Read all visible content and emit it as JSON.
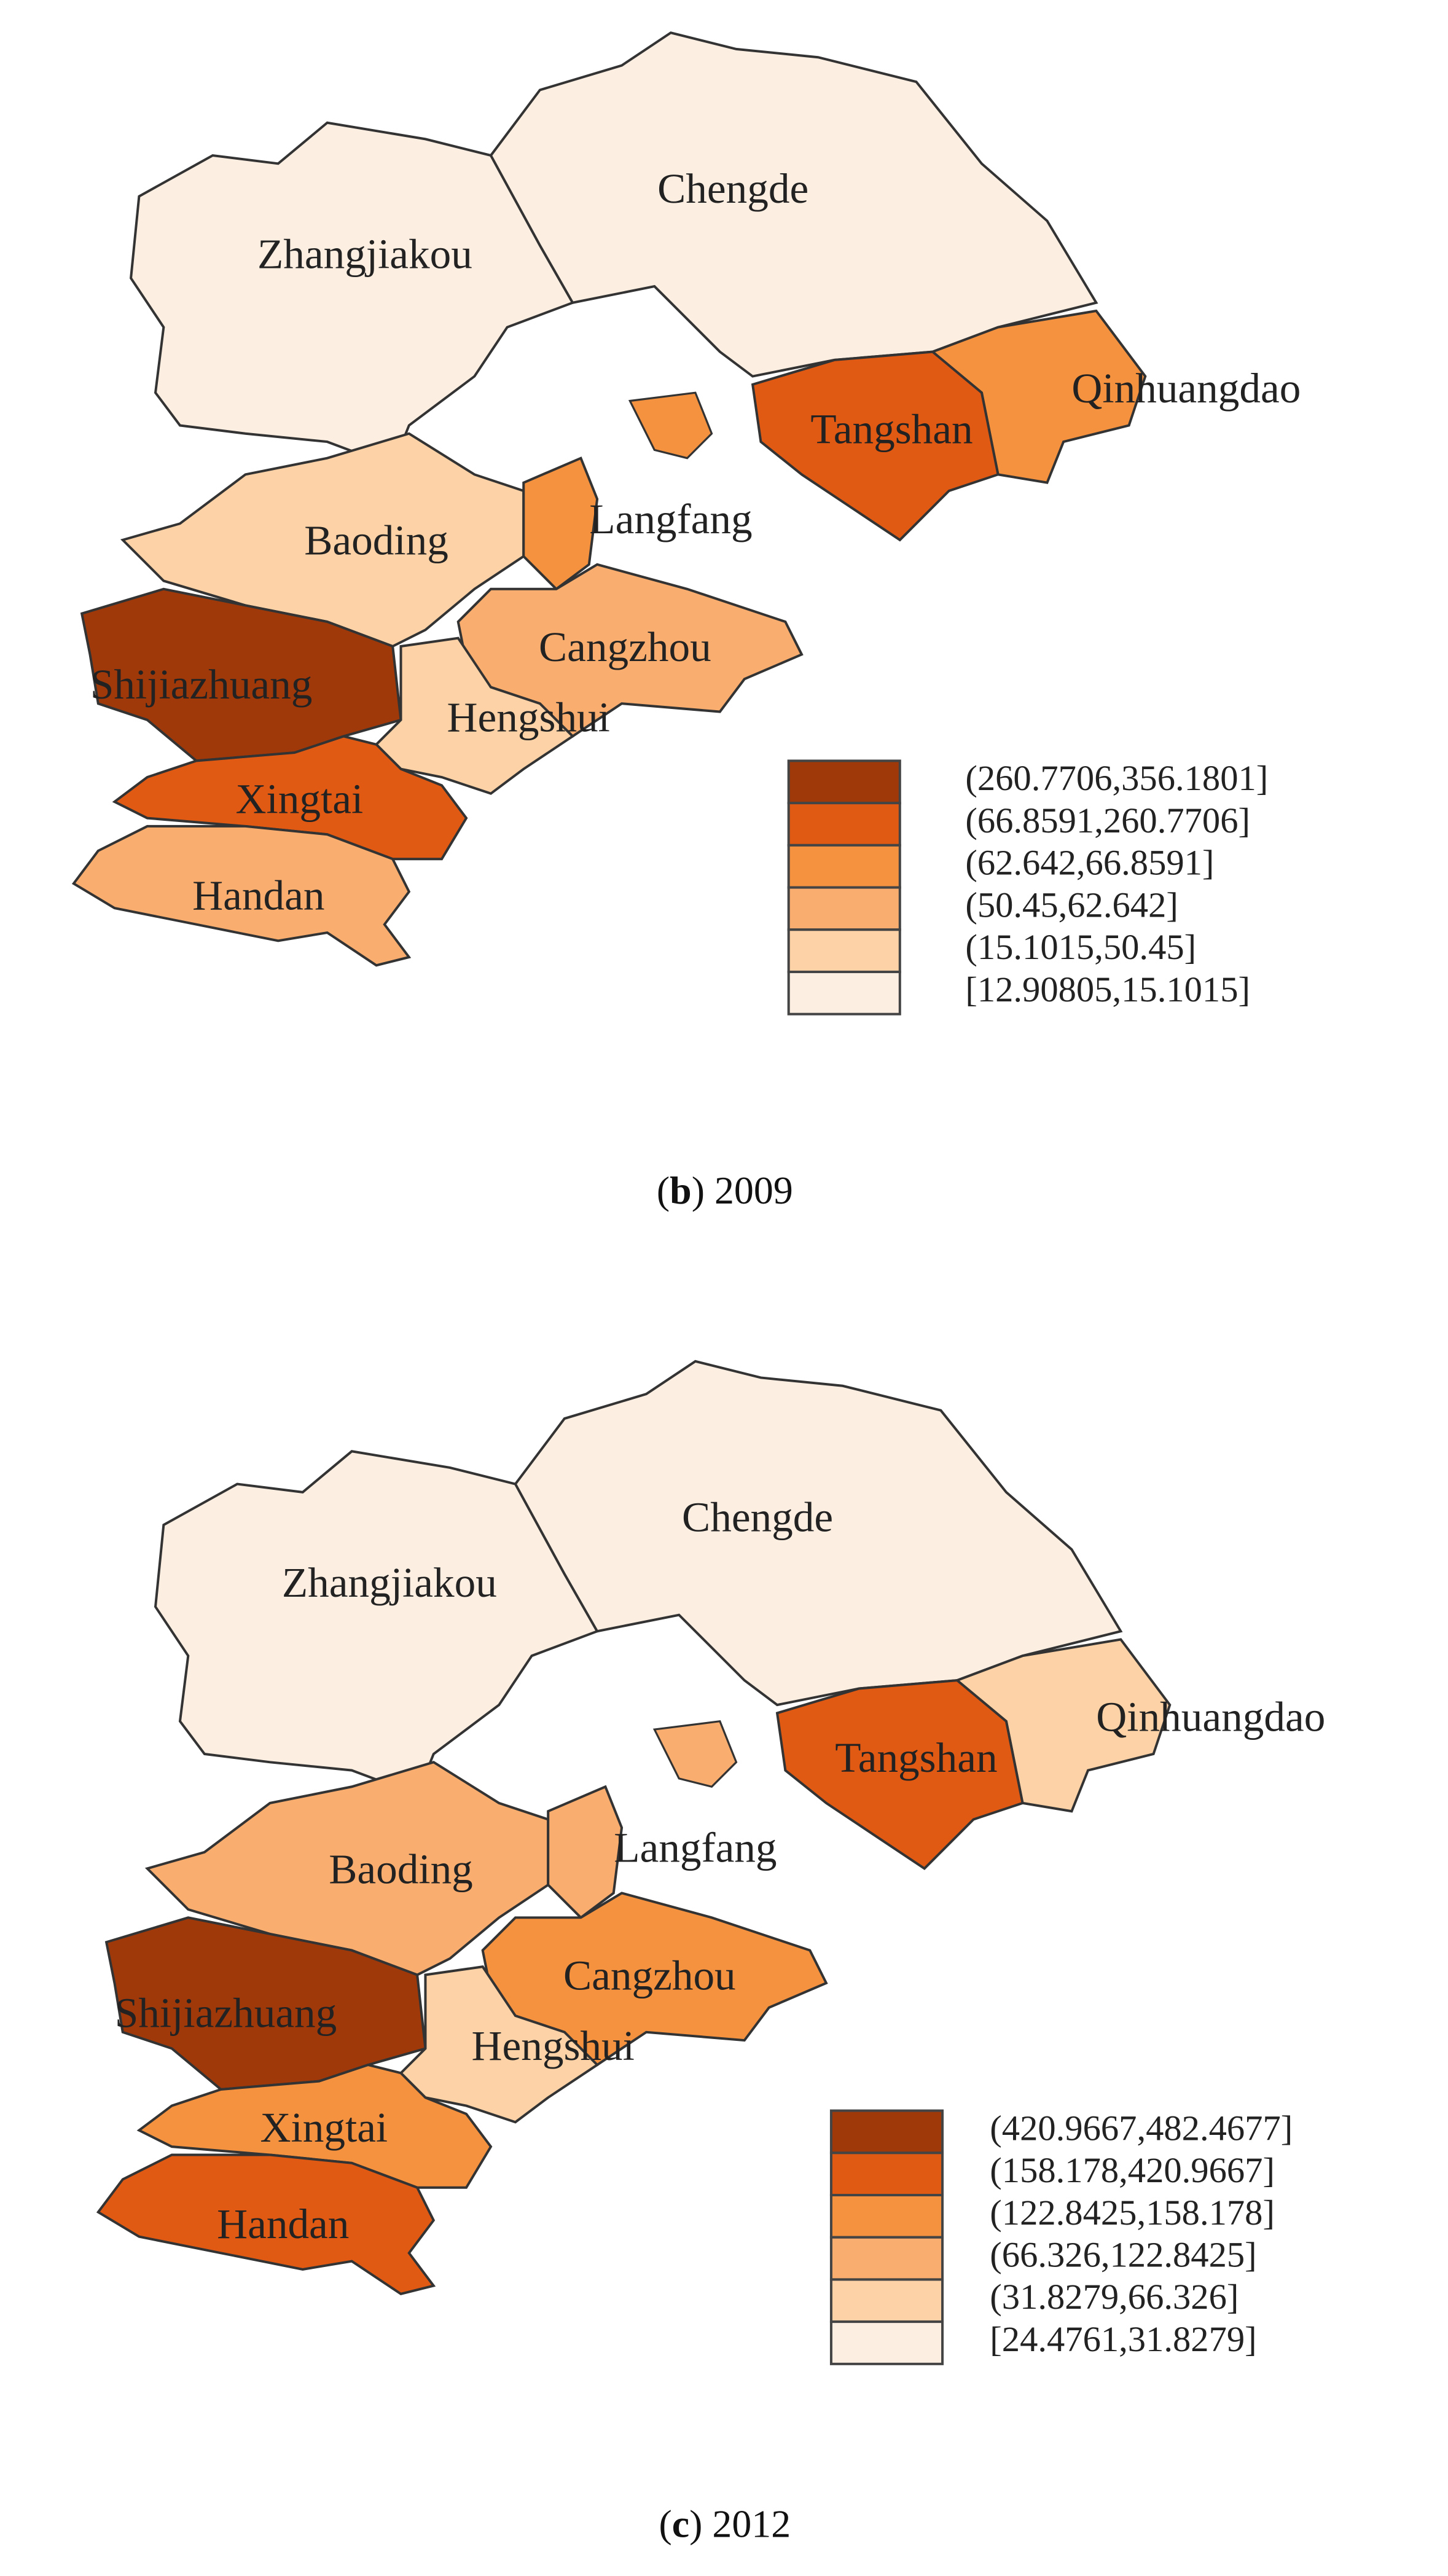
{
  "panels": [
    {
      "caption": [
        "(",
        "b",
        ") 2009"
      ],
      "regions": [
        {
          "name": "Zhangjiakou",
          "color": "#fdeee2"
        },
        {
          "name": "Chengde",
          "color": "#fdeee2"
        },
        {
          "name": "Qinhuangdao",
          "color": "#f5923f"
        },
        {
          "name": "Tangshan",
          "color": "#e05a14"
        },
        {
          "name": "Baoding",
          "color": "#fcd2a6"
        },
        {
          "name": "Langfang",
          "color": "#f5923f"
        },
        {
          "name": "Cangzhou",
          "color": "#f9ad6e"
        },
        {
          "name": "Shijiazhuang",
          "color": "#a0390a"
        },
        {
          "name": "Hengshui",
          "color": "#fcd2a6"
        },
        {
          "name": "Xingtai",
          "color": "#e05a14"
        },
        {
          "name": "Handan",
          "color": "#f9ad6e"
        }
      ],
      "legend": [
        {
          "label": "(260.7706,356.1801]",
          "color": "#a0390a"
        },
        {
          "label": "(66.8591,260.7706]",
          "color": "#e05a14"
        },
        {
          "label": "(62.642,66.8591]",
          "color": "#f5923f"
        },
        {
          "label": "(50.45,62.642]",
          "color": "#f9ad6e"
        },
        {
          "label": "(15.1015,50.45]",
          "color": "#fcd2a6"
        },
        {
          "label": "[12.90805,15.1015]",
          "color": "#fdeee2"
        }
      ]
    },
    {
      "caption": [
        "(",
        "c",
        ") 2012"
      ],
      "regions": [
        {
          "name": "Zhangjiakou",
          "color": "#fdeee2"
        },
        {
          "name": "Chengde",
          "color": "#fdeee2"
        },
        {
          "name": "Qinhuangdao",
          "color": "#fcd2a6"
        },
        {
          "name": "Tangshan",
          "color": "#e05a14"
        },
        {
          "name": "Baoding",
          "color": "#f9ad6e"
        },
        {
          "name": "Langfang",
          "color": "#f9ad6e"
        },
        {
          "name": "Cangzhou",
          "color": "#f5923f"
        },
        {
          "name": "Shijiazhuang",
          "color": "#a0390a"
        },
        {
          "name": "Hengshui",
          "color": "#fcd2a6"
        },
        {
          "name": "Xingtai",
          "color": "#f5923f"
        },
        {
          "name": "Handan",
          "color": "#e05a14"
        }
      ],
      "legend": [
        {
          "label": "(420.9667,482.4677]",
          "color": "#a0390a"
        },
        {
          "label": "(158.178,420.9667]",
          "color": "#e05a14"
        },
        {
          "label": "(122.8425,158.178]",
          "color": "#f5923f"
        },
        {
          "label": "(66.326,122.8425]",
          "color": "#f9ad6e"
        },
        {
          "label": "(31.8279,66.326]",
          "color": "#fcd2a6"
        },
        {
          "label": "[24.4761,31.8279]",
          "color": "#fdeee2"
        }
      ]
    }
  ]
}
